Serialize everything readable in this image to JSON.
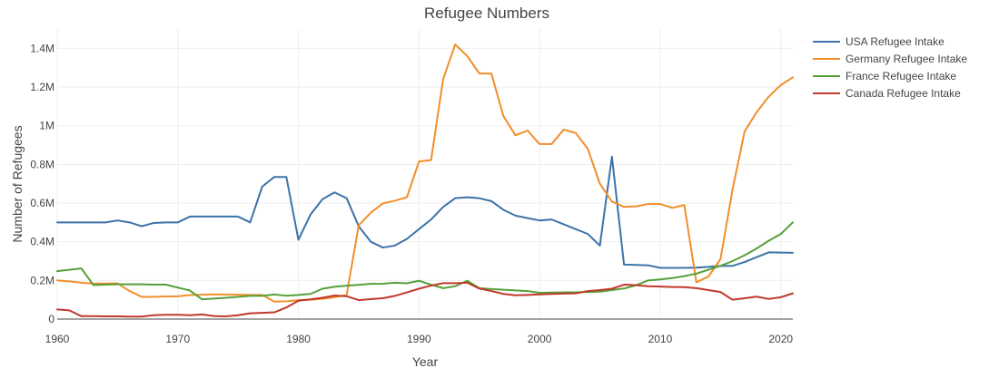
{
  "chart_data": {
    "type": "line",
    "title": "Refugee Numbers",
    "xlabel": "Year",
    "ylabel": "Number of Refugees",
    "xlim": [
      1960,
      2021
    ],
    "ylim": [
      0,
      1500000
    ],
    "grid": true,
    "legend_position": "right",
    "x_ticks": [
      1960,
      1970,
      1980,
      1990,
      2000,
      2010,
      2020
    ],
    "x_tick_labels": [
      "1960",
      "1970",
      "1980",
      "1990",
      "2000",
      "2010",
      "2020"
    ],
    "y_ticks": [
      0,
      200000,
      400000,
      600000,
      800000,
      1000000,
      1200000,
      1400000
    ],
    "y_tick_labels": [
      "0",
      "0.2M",
      "0.4M",
      "0.6M",
      "0.8M",
      "1M",
      "1.2M",
      "1.4M"
    ],
    "x": [
      1960,
      1961,
      1962,
      1963,
      1964,
      1965,
      1966,
      1967,
      1968,
      1969,
      1970,
      1971,
      1972,
      1973,
      1974,
      1975,
      1976,
      1977,
      1978,
      1979,
      1980,
      1981,
      1982,
      1983,
      1984,
      1985,
      1986,
      1987,
      1988,
      1989,
      1990,
      1991,
      1992,
      1993,
      1994,
      1995,
      1996,
      1997,
      1998,
      1999,
      2000,
      2001,
      2002,
      2003,
      2004,
      2005,
      2006,
      2007,
      2008,
      2009,
      2010,
      2011,
      2012,
      2013,
      2014,
      2015,
      2016,
      2017,
      2018,
      2019,
      2020,
      2021
    ],
    "series": [
      {
        "name": "USA Refugee Intake",
        "color": "#3c73a8",
        "values": [
          500000,
          500000,
          500000,
          500000,
          500000,
          510000,
          500000,
          480000,
          497000,
          500000,
          500000,
          530000,
          530000,
          530000,
          530000,
          530000,
          500000,
          685000,
          735000,
          735000,
          410000,
          540000,
          620000,
          655000,
          625000,
          480000,
          400000,
          370000,
          380000,
          415000,
          465000,
          515000,
          580000,
          625000,
          630000,
          625000,
          610000,
          565000,
          535000,
          522000,
          510000,
          515000,
          490000,
          465000,
          440000,
          380000,
          840000,
          282000,
          280000,
          278000,
          265000,
          265000,
          265000,
          266000,
          270000,
          275000,
          275000,
          295000,
          320000,
          345000,
          344000,
          343000
        ]
      },
      {
        "name": "Germany Refugee Intake",
        "color": "#f28e2b",
        "values": [
          200000,
          195000,
          188000,
          184000,
          184000,
          185000,
          145000,
          115000,
          115000,
          117000,
          118000,
          124000,
          126000,
          128000,
          127000,
          126000,
          125000,
          125000,
          90000,
          92000,
          98000,
          100000,
          105000,
          113000,
          125000,
          485000,
          550000,
          598000,
          612000,
          630000,
          815000,
          822000,
          1240000,
          1420000,
          1360000,
          1270000,
          1270000,
          1050000,
          950000,
          975000,
          905000,
          905000,
          980000,
          962000,
          880000,
          700000,
          608000,
          580000,
          583000,
          595000,
          595000,
          575000,
          590000,
          190000,
          220000,
          310000,
          670000,
          970000,
          1070000,
          1150000,
          1210000,
          1250000
        ]
      },
      {
        "name": "France Refugee Intake",
        "color": "#56a03a",
        "values": [
          248000,
          255000,
          262000,
          176000,
          178000,
          180000,
          180000,
          180000,
          178000,
          178000,
          163000,
          148000,
          102000,
          106000,
          110000,
          115000,
          120000,
          120000,
          127000,
          121000,
          125000,
          130000,
          157000,
          167000,
          173000,
          177000,
          182000,
          183000,
          188000,
          185000,
          198000,
          178000,
          160000,
          170000,
          198000,
          160000,
          155000,
          152000,
          148000,
          145000,
          136000,
          137000,
          138000,
          138000,
          140000,
          142000,
          150000,
          158000,
          175000,
          200000,
          205000,
          212000,
          222000,
          235000,
          255000,
          275000,
          300000,
          330000,
          365000,
          405000,
          440000,
          500000
        ]
      },
      {
        "name": "Canada Refugee Intake",
        "color": "#c0392b",
        "values": [
          50000,
          45000,
          15000,
          15000,
          14000,
          14000,
          13000,
          13000,
          20000,
          22000,
          22000,
          20000,
          24000,
          16000,
          14000,
          20000,
          30000,
          32000,
          35000,
          60000,
          95000,
          102000,
          110000,
          122000,
          118000,
          98000,
          103000,
          108000,
          120000,
          138000,
          157000,
          173000,
          186000,
          186000,
          188000,
          158000,
          145000,
          130000,
          123000,
          125000,
          128000,
          130000,
          132000,
          133000,
          145000,
          150000,
          157000,
          178000,
          175000,
          170000,
          168000,
          166000,
          165000,
          160000,
          150000,
          140000,
          100000,
          108000,
          116000,
          104000,
          113000,
          133000
        ]
      }
    ]
  }
}
